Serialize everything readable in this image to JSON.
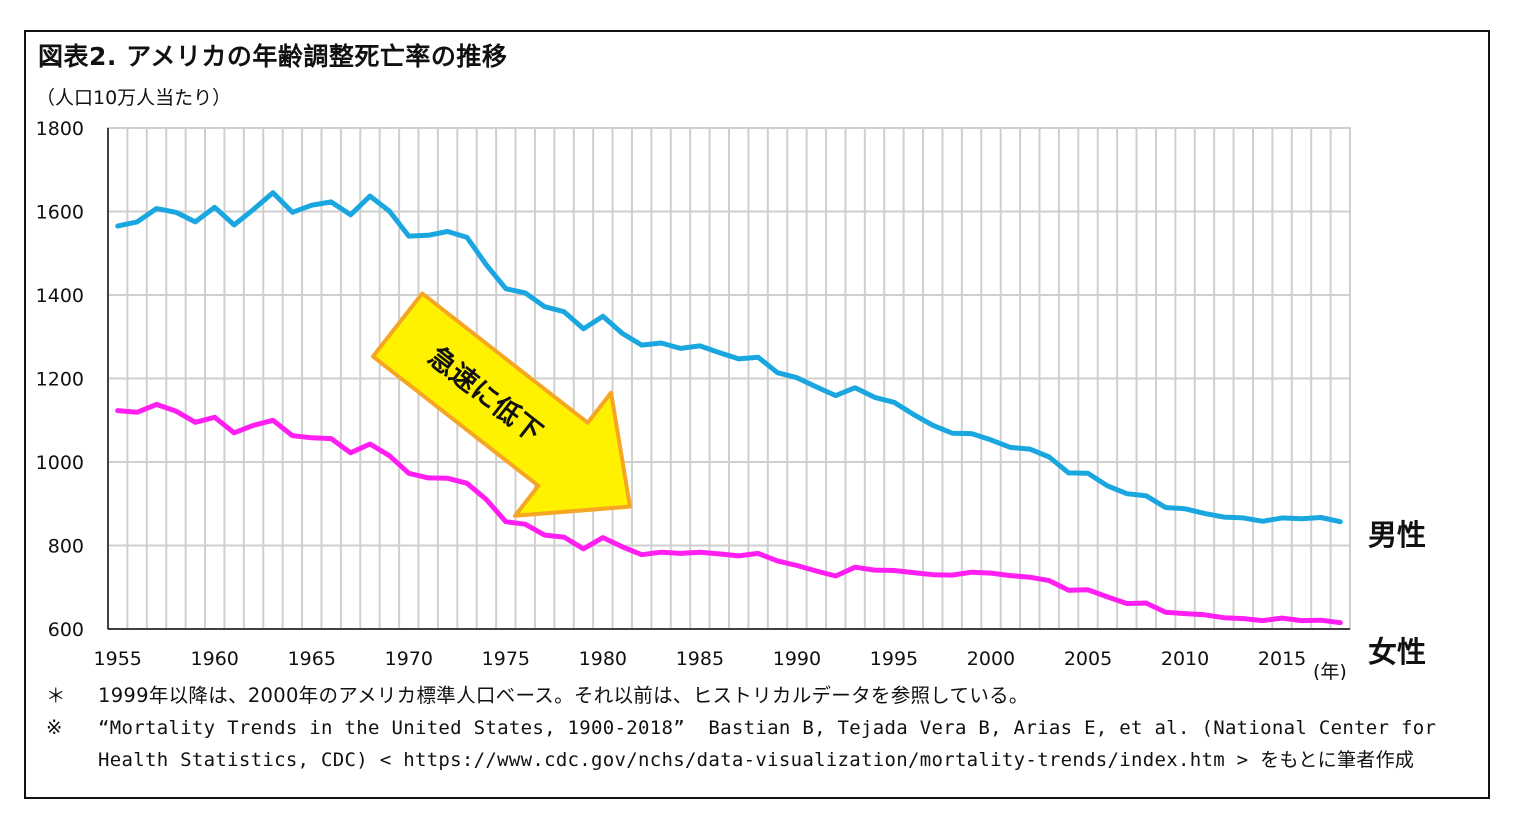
{
  "title": "図表2. アメリカの年齢調整死亡率の推移",
  "unit_label": "（人口10万人当たり）",
  "x_unit_label": "(年)",
  "annotation": {
    "text": "急速に低下",
    "fill": "#fff200",
    "stroke": "#f5a623"
  },
  "colors": {
    "male": "#1aa7e0",
    "female": "#ff1ff2",
    "grid": "#cfcfcf"
  },
  "notes": [
    {
      "mark": "＊",
      "text": "1999年以降は、2000年のアメリカ標準人口ベース。それ以前は、ヒストリカルデータを参照している。"
    },
    {
      "mark": "※",
      "text": "“Mortality Trends in the United States, 1900-2018”  Bastian B, Tejada Vera B, Arias E, et al. (National Center for Health Statistics, CDC) < https://www.cdc.gov/nchs/data-visualization/mortality-trends/index.htm > をもとに筆者作成"
    }
  ],
  "chart_data": {
    "type": "line",
    "x": [
      1955,
      1956,
      1957,
      1958,
      1959,
      1960,
      1961,
      1962,
      1963,
      1964,
      1965,
      1966,
      1967,
      1968,
      1969,
      1970,
      1971,
      1972,
      1973,
      1974,
      1975,
      1976,
      1977,
      1978,
      1979,
      1980,
      1981,
      1982,
      1983,
      1984,
      1985,
      1986,
      1987,
      1988,
      1989,
      1990,
      1991,
      1992,
      1993,
      1994,
      1995,
      1996,
      1997,
      1998,
      1999,
      2000,
      2001,
      2002,
      2003,
      2004,
      2005,
      2006,
      2007,
      2008,
      2009,
      2010,
      2011,
      2012,
      2013,
      2014,
      2015,
      2016,
      2017,
      2018
    ],
    "series": [
      {
        "name": "男性",
        "values": [
          1565,
          1575,
          1607,
          1598,
          1575,
          1610,
          1568,
          1605,
          1645,
          1598,
          1615,
          1623,
          1592,
          1637,
          1601,
          1541,
          1543,
          1552,
          1538,
          1472,
          1415,
          1405,
          1372,
          1360,
          1319,
          1349,
          1308,
          1280,
          1285,
          1272,
          1278,
          1262,
          1247,
          1251,
          1214,
          1202,
          1180,
          1159,
          1178,
          1155,
          1143,
          1114,
          1088,
          1069,
          1068,
          1053,
          1035,
          1031,
          1012,
          974,
          973,
          943,
          924,
          919,
          891,
          888,
          877,
          868,
          866,
          858,
          866,
          864,
          867,
          857
        ]
      },
      {
        "name": "女性",
        "values": [
          1123,
          1119,
          1138,
          1122,
          1095,
          1107,
          1070,
          1088,
          1100,
          1063,
          1058,
          1056,
          1022,
          1043,
          1015,
          973,
          962,
          961,
          949,
          910,
          857,
          851,
          825,
          820,
          792,
          819,
          797,
          778,
          784,
          781,
          784,
          780,
          775,
          781,
          763,
          752,
          739,
          727,
          748,
          741,
          740,
          735,
          730,
          729,
          736,
          734,
          728,
          724,
          716,
          693,
          694,
          677,
          661,
          662,
          640,
          637,
          634,
          627,
          625,
          620,
          626,
          620,
          621,
          615
        ]
      }
    ],
    "ylim": [
      600,
      1800
    ],
    "yticks": [
      600,
      800,
      1000,
      1200,
      1400,
      1600,
      1800
    ],
    "xticks": [
      1955,
      1960,
      1965,
      1970,
      1975,
      1980,
      1985,
      1990,
      1995,
      2000,
      2005,
      2010,
      2015
    ],
    "grid": true,
    "legend": "right end labels"
  }
}
